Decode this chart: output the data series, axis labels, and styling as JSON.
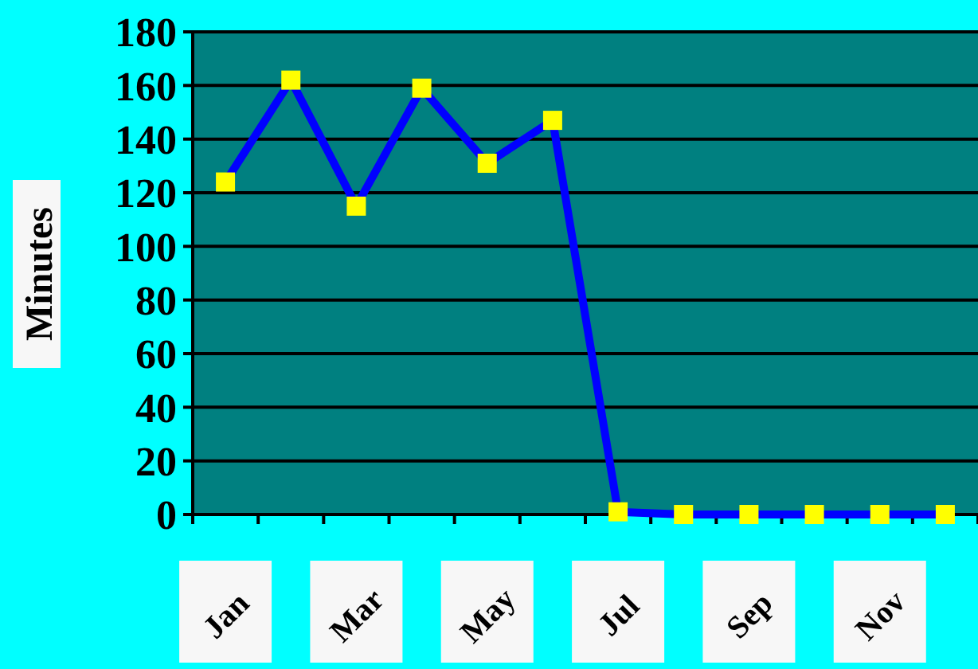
{
  "chart_data": {
    "type": "line",
    "ylabel": "Minutes",
    "categories": [
      "Jan",
      null,
      "Mar",
      null,
      "May",
      null,
      "Jul",
      null,
      "Sep",
      null,
      "Nov",
      null
    ],
    "series": [
      {
        "color": "#0000ff",
        "values": [
          124,
          162,
          115,
          159,
          131,
          147,
          1,
          0,
          0,
          0,
          0,
          0
        ]
      }
    ],
    "ylim": [
      0,
      180
    ],
    "yticks": [
      0,
      20,
      40,
      60,
      80,
      100,
      120,
      140,
      160,
      180
    ],
    "grid": "y",
    "marker": "square",
    "line_style": "solid"
  }
}
